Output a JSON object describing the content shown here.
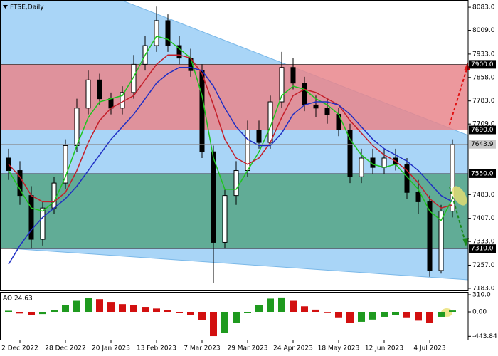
{
  "chart_data": [
    {
      "type": "candlestick",
      "title": "FTSE,Daily",
      "categories": [
        null,
        "2 Dec 2022",
        null,
        null,
        null,
        "28 Dec 2022",
        null,
        null,
        null,
        "20 Jan 2023",
        null,
        null,
        null,
        "13 Feb 2023",
        null,
        null,
        null,
        "7 Mar 2023",
        null,
        null,
        null,
        "29 Mar 2023",
        null,
        null,
        null,
        "24 Apr 2023",
        null,
        null,
        null,
        "18 May 2023",
        null,
        null,
        null,
        "12 Jun 2023",
        null,
        null,
        null,
        "4 Jul 2023",
        null,
        null
      ],
      "open": [
        7600,
        7560,
        7480,
        7340,
        7440,
        7520,
        7640,
        7760,
        7850,
        7790,
        7760,
        7810,
        7900,
        7960,
        8040,
        7960,
        7920,
        7880,
        7620,
        7330,
        7480,
        7560,
        7690,
        7650,
        7780,
        7890,
        7840,
        7770,
        7760,
        7740,
        7690,
        7540,
        7600,
        7570,
        7600,
        7580,
        7490,
        7460,
        7240,
        7430
      ],
      "high": [
        7630,
        7590,
        7510,
        7460,
        7540,
        7660,
        7790,
        7880,
        7870,
        7810,
        7830,
        7930,
        7990,
        8085,
        8060,
        7990,
        7950,
        7900,
        7640,
        7500,
        7590,
        7720,
        7720,
        7800,
        7940,
        7920,
        7860,
        7800,
        7790,
        7760,
        7710,
        7630,
        7630,
        7630,
        7630,
        7600,
        7530,
        7480,
        7450,
        7660
      ],
      "low": [
        7530,
        7450,
        7310,
        7320,
        7420,
        7500,
        7620,
        7740,
        7770,
        7740,
        7740,
        7790,
        7880,
        7940,
        7940,
        7900,
        7860,
        7600,
        7200,
        7310,
        7450,
        7540,
        7630,
        7630,
        7760,
        7820,
        7750,
        7730,
        7710,
        7670,
        7520,
        7520,
        7550,
        7550,
        7560,
        7470,
        7420,
        7220,
        7230,
        7410
      ],
      "close": [
        7560,
        7480,
        7340,
        7440,
        7520,
        7640,
        7760,
        7850,
        7790,
        7760,
        7810,
        7900,
        7960,
        8040,
        7960,
        7920,
        7880,
        7620,
        7330,
        7480,
        7560,
        7690,
        7650,
        7780,
        7890,
        7840,
        7770,
        7760,
        7740,
        7690,
        7540,
        7600,
        7570,
        7600,
        7580,
        7490,
        7460,
        7240,
        7430,
        7643.9
      ],
      "close_label": "7643.9",
      "candle_color": "#000000",
      "series": [
        {
          "color": "#1fc41f",
          "values": [
            7560,
            7500,
            7440,
            7430,
            7460,
            7540,
            7640,
            7730,
            7780,
            7790,
            7800,
            7860,
            7930,
            7990,
            7980,
            7950,
            7920,
            7800,
            7600,
            7500,
            7500,
            7560,
            7620,
            7700,
            7800,
            7830,
            7820,
            7790,
            7770,
            7740,
            7660,
            7610,
            7580,
            7570,
            7580,
            7540,
            7500,
            7430,
            7400,
            7470
          ]
        },
        {
          "color": "#c41f2a",
          "values": [
            7580,
            7540,
            7480,
            7460,
            7460,
            7490,
            7560,
            7650,
            7720,
            7760,
            7780,
            7800,
            7850,
            7900,
            7930,
            7930,
            7920,
            7870,
            7770,
            7660,
            7600,
            7580,
            7600,
            7650,
            7730,
            7800,
            7820,
            7810,
            7790,
            7770,
            7720,
            7680,
            7640,
            7610,
            7590,
            7560,
            7520,
            7470,
            7440,
            7450
          ]
        },
        {
          "color": "#1f2fc4",
          "values": [
            7260,
            7320,
            7370,
            7410,
            7440,
            7470,
            7510,
            7560,
            7610,
            7660,
            7700,
            7740,
            7790,
            7840,
            7870,
            7890,
            7890,
            7880,
            7830,
            7760,
            7700,
            7660,
            7640,
            7640,
            7680,
            7740,
            7770,
            7780,
            7780,
            7770,
            7740,
            7700,
            7660,
            7630,
            7610,
            7590,
            7560,
            7520,
            7480,
            7460
          ]
        }
      ],
      "levels": [
        {
          "value": 7900,
          "label": "7900.0"
        },
        {
          "value": 7690,
          "label": "7690.0"
        },
        {
          "value": 7550,
          "label": "7550.0"
        },
        {
          "value": 7310,
          "label": "7310.0"
        }
      ],
      "zones": [
        {
          "low": 7690,
          "high": 7900,
          "color": "#e9868c"
        },
        {
          "low": 7310,
          "high": 7550,
          "color": "#55a585"
        }
      ],
      "ylim": [
        7176,
        8106
      ],
      "yticks": [
        {
          "value": 8083,
          "label": "8083.0"
        },
        {
          "value": 8009,
          "label": "8009.0"
        },
        {
          "value": 7933,
          "label": "7933.0"
        },
        {
          "value": 7858,
          "label": "7858.0"
        },
        {
          "value": 7783,
          "label": "7783.0"
        },
        {
          "value": 7709,
          "label": "7709.0"
        },
        {
          "value": 7483,
          "label": "7483.0"
        },
        {
          "value": 7407,
          "label": "7407.0"
        },
        {
          "value": 7333,
          "label": "7333.0"
        },
        {
          "value": 7257,
          "label": "7257.0"
        },
        {
          "value": 7183,
          "label": "7183.0"
        }
      ],
      "grid": false
    },
    {
      "type": "bar",
      "title": "AO 24.63",
      "values": [
        20,
        -30,
        -60,
        -40,
        30,
        120,
        200,
        250,
        230,
        180,
        140,
        120,
        90,
        60,
        30,
        -20,
        -60,
        -150,
        -440,
        -380,
        -200,
        -20,
        120,
        240,
        260,
        200,
        100,
        40,
        -10,
        -100,
        -200,
        -180,
        -140,
        -90,
        -60,
        -100,
        -160,
        -200,
        -90,
        24.63
      ],
      "up_color": "#1f9a1f",
      "down_color": "#d21010",
      "ylim": [
        -517,
        362
      ],
      "yticks": [
        {
          "value": 310,
          "label": "310.0"
        },
        {
          "value": 0,
          "label": "0.00"
        },
        -443.84
      ],
      "grid": false
    }
  ]
}
